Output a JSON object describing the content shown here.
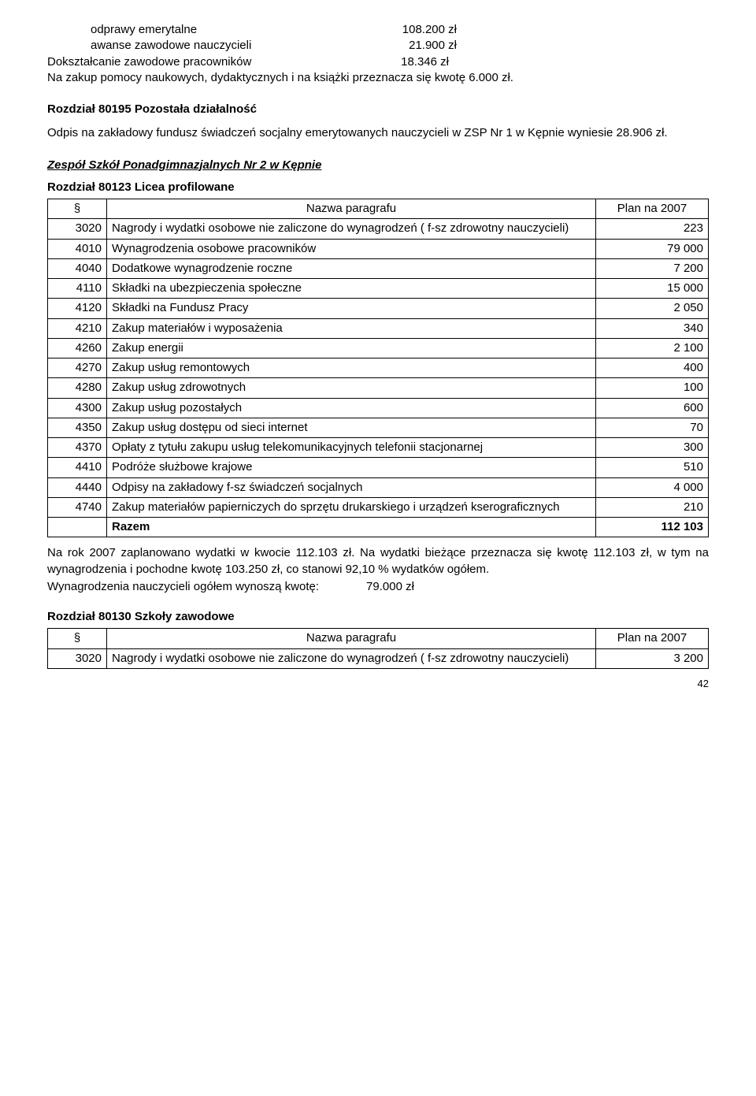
{
  "intro": {
    "lines_indented": [
      {
        "label": "odprawy emerytalne",
        "value": "108.200 zł"
      },
      {
        "label": "awanse zawodowe nauczycieli",
        "value": "21.900 zł"
      }
    ],
    "lines_left": [
      {
        "label": "Dokształcanie zawodowe pracowników",
        "value": "18.346 zł"
      }
    ],
    "para1": "Na zakup pomocy naukowych, dydaktycznych i na książki przeznacza się kwotę 6.000 zł."
  },
  "section1": {
    "title": "Rozdział 80195 Pozostała działalność",
    "para": "Odpis na zakładowy fundusz świadczeń socjalny emerytowanych nauczycieli w ZSP Nr 1 w Kępnie wyniesie 28.906 zł."
  },
  "section2": {
    "title": "Zespół Szkół Ponadgimnazjalnych Nr 2 w Kępnie",
    "subtitle": "Rozdział 80123 Licea profilowane"
  },
  "table1": {
    "header": {
      "code": "§",
      "name": "Nazwa paragrafu",
      "plan": "Plan na 2007"
    },
    "rows": [
      {
        "code": "3020",
        "name": "Nagrody i wydatki osobowe nie zaliczone do wynagrodzeń ( f-sz zdrowotny nauczycieli)",
        "val": "223"
      },
      {
        "code": "4010",
        "name": "Wynagrodzenia osobowe pracowników",
        "val": "79 000"
      },
      {
        "code": "4040",
        "name": "Dodatkowe wynagrodzenie roczne",
        "val": "7 200"
      },
      {
        "code": "4110",
        "name": "Składki na ubezpieczenia społeczne",
        "val": "15 000"
      },
      {
        "code": "4120",
        "name": "Składki na Fundusz Pracy",
        "val": "2 050"
      },
      {
        "code": "4210",
        "name": "Zakup materiałów i wyposażenia",
        "val": "340"
      },
      {
        "code": "4260",
        "name": "Zakup energii",
        "val": "2 100"
      },
      {
        "code": "4270",
        "name": "Zakup usług remontowych",
        "val": "400"
      },
      {
        "code": "4280",
        "name": "Zakup usług zdrowotnych",
        "val": "100"
      },
      {
        "code": "4300",
        "name": "Zakup usług pozostałych",
        "val": "600"
      },
      {
        "code": "4350",
        "name": "Zakup usług dostępu od sieci internet",
        "val": "70"
      },
      {
        "code": "4370",
        "name": "Opłaty z tytułu zakupu usług telekomunikacyjnych telefonii stacjonarnej",
        "val": "300"
      },
      {
        "code": "4410",
        "name": "Podróże służbowe krajowe",
        "val": "510"
      },
      {
        "code": "4440",
        "name": "Odpisy na zakładowy f-sz świadczeń socjalnych",
        "val": "4 000"
      },
      {
        "code": "4740",
        "name": "Zakup materiałów papierniczych do sprzętu drukarskiego i urządzeń kserograficznych",
        "val": "210"
      }
    ],
    "total": {
      "name": "Razem",
      "val": "112 103"
    }
  },
  "after1": {
    "para": "Na rok 2007 zaplanowano wydatki w kwocie 112.103 zł. Na wydatki bieżące przeznacza się kwotę 112.103 zł, w tym na wynagrodzenia i pochodne kwotę 103.250 zł, co stanowi 92,10 % wydatków ogółem.",
    "line": {
      "label": "Wynagrodzenia nauczycieli ogółem wynoszą kwotę:",
      "value": "79.000 zł"
    }
  },
  "section3": {
    "title": "Rozdział 80130 Szkoły zawodowe"
  },
  "table2": {
    "header": {
      "code": "§",
      "name": "Nazwa paragrafu",
      "plan": "Plan na 2007"
    },
    "rows": [
      {
        "code": "3020",
        "name": "Nagrody i wydatki osobowe nie zaliczone do wynagrodzeń ( f-sz zdrowotny nauczycieli)",
        "val": "3 200"
      }
    ]
  },
  "pagenum": "42"
}
